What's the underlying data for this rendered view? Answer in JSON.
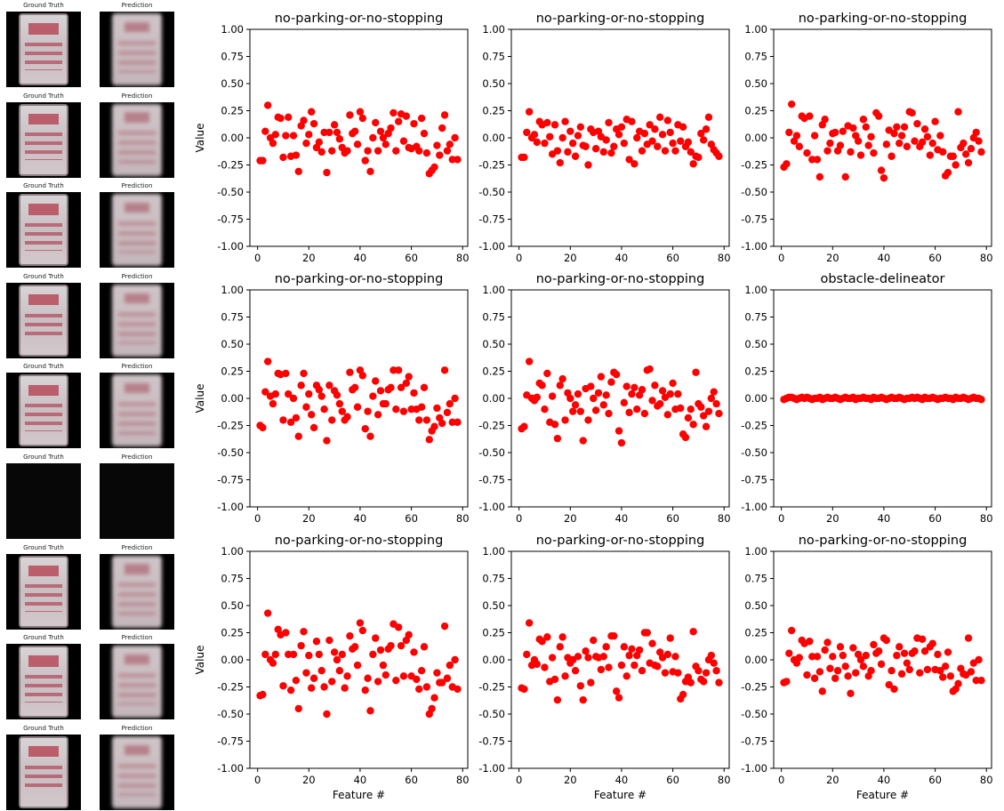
{
  "image_panel": {
    "gt_label": "Ground Truth",
    "pred_label": "Prediction",
    "rows": 9,
    "dark_rows": [
      5
    ]
  },
  "chart_data": [
    {
      "type": "scatter",
      "title": "no-parking-or-no-stopping",
      "xlabel": "",
      "ylabel": "Value",
      "ylim": [
        -1,
        1
      ],
      "xlim": [
        -3,
        82
      ],
      "xticks": [
        0,
        20,
        40,
        60,
        80
      ],
      "yticks": [
        -1,
        -0.75,
        -0.5,
        -0.25,
        0,
        0.25,
        0.5,
        0.75,
        1
      ],
      "color": "#ff0000",
      "values": [
        -0.21,
        -0.21,
        0.06,
        0.3,
        0.0,
        -0.05,
        0.03,
        0.19,
        0.18,
        -0.18,
        0.02,
        0.19,
        -0.17,
        0.02,
        -0.16,
        -0.31,
        0.11,
        0.16,
        -0.05,
        0.03,
        0.24,
        0.13,
        -0.09,
        -0.04,
        -0.13,
        0.05,
        -0.32,
        0.05,
        -0.12,
        0.12,
        0.05,
        -0.01,
        -0.09,
        -0.14,
        -0.12,
        0.21,
        0.04,
        0.06,
        -0.06,
        0.24,
        0.18,
        -0.21,
        -0.12,
        -0.31,
        0.0,
        0.14,
        -0.12,
        0.06,
        0.0,
        -0.06,
        0.04,
        0.09,
        0.23,
        -0.12,
        0.15,
        0.22,
        -0.03,
        0.2,
        -0.09,
        -0.1,
        0.13,
        -0.08,
        -0.12,
        0.18,
        0.04,
        -0.14,
        -0.33,
        -0.3,
        -0.27,
        -0.07,
        -0.16,
        0.09,
        0.21,
        -0.12,
        -0.06,
        -0.2,
        0.0,
        -0.2
      ]
    },
    {
      "type": "scatter",
      "title": "no-parking-or-no-stopping",
      "xlabel": "",
      "ylabel": "",
      "ylim": [
        -1,
        1
      ],
      "xlim": [
        -3,
        82
      ],
      "xticks": [
        0,
        20,
        40,
        60,
        80
      ],
      "yticks": [
        -1,
        -0.75,
        -0.5,
        -0.25,
        0,
        0.25,
        0.5,
        0.75,
        1
      ],
      "color": "#ff0000",
      "values": [
        -0.18,
        -0.18,
        0.05,
        0.24,
        0.0,
        0.03,
        -0.04,
        0.15,
        0.12,
        -0.05,
        0.14,
        0.01,
        -0.15,
        0.12,
        -0.12,
        -0.23,
        0.0,
        0.15,
        -0.13,
        0.06,
        -0.05,
        -0.17,
        0.02,
        0.1,
        -0.07,
        -0.08,
        -0.25,
        0.08,
        0.05,
        -0.1,
        0.06,
        0.01,
        -0.13,
        -0.02,
        0.14,
        -0.14,
        -0.08,
        0.08,
        0.03,
        0.1,
        -0.05,
        0.17,
        -0.2,
        0.15,
        -0.24,
        0.0,
        0.06,
        -0.12,
        0.04,
        -0.06,
        0.12,
        -0.03,
        0.08,
        -0.08,
        0.19,
        0.03,
        -0.12,
        0.16,
        0.05,
        -0.05,
        -0.12,
        0.12,
        -0.03,
        0.1,
        -0.08,
        -0.04,
        -0.13,
        -0.24,
        -0.17,
        -0.18,
        0.04,
        -0.02,
        0.08,
        0.19,
        -0.06,
        -0.11,
        -0.14,
        -0.17
      ]
    },
    {
      "type": "scatter",
      "title": "no-parking-or-no-stopping",
      "xlabel": "",
      "ylabel": "",
      "ylim": [
        -1,
        1
      ],
      "xlim": [
        -3,
        82
      ],
      "xticks": [
        0,
        20,
        40,
        60,
        80
      ],
      "yticks": [
        -1,
        -0.75,
        -0.5,
        -0.25,
        0,
        0.25,
        0.5,
        0.75,
        1
      ],
      "color": "#ff0000",
      "values": [
        -0.27,
        -0.24,
        0.05,
        0.31,
        -0.03,
        0.02,
        -0.08,
        0.2,
        0.18,
        -0.14,
        0.2,
        -0.2,
        0.02,
        -0.2,
        -0.36,
        0.12,
        0.17,
        -0.12,
        -0.05,
        0.04,
        0.05,
        -0.12,
        -0.07,
        0.06,
        -0.36,
        0.11,
        -0.13,
        0.09,
        0.02,
        -0.03,
        -0.16,
        0.17,
        0.1,
        -0.07,
        0.01,
        -0.14,
        0.23,
        0.2,
        -0.3,
        -0.37,
        -0.06,
        0.07,
        -0.17,
        0.04,
        0.1,
        -0.05,
        0.02,
        0.1,
        -0.08,
        0.24,
        0.23,
        -0.03,
        0.13,
        -0.08,
        -0.04,
        0.08,
        0.01,
        -0.16,
        -0.05,
        0.15,
        -0.11,
        0.02,
        -0.13,
        -0.35,
        -0.32,
        -0.17,
        -0.17,
        -0.25,
        0.24,
        -0.09,
        -0.05,
        -0.15,
        -0.23,
        -0.1,
        0.0,
        0.05,
        -0.03,
        -0.13
      ]
    },
    {
      "type": "scatter",
      "title": "no-parking-or-no-stopping",
      "xlabel": "",
      "ylabel": "Value",
      "ylim": [
        -1,
        1
      ],
      "xlim": [
        -3,
        82
      ],
      "xticks": [
        0,
        20,
        40,
        60,
        80
      ],
      "yticks": [
        -1,
        -0.75,
        -0.5,
        -0.25,
        0,
        0.25,
        0.5,
        0.75,
        1
      ],
      "color": "#ff0000",
      "values": [
        -0.25,
        -0.27,
        0.06,
        0.34,
        0.02,
        -0.05,
        0.04,
        0.23,
        0.22,
        -0.2,
        0.23,
        0.04,
        -0.22,
        0.0,
        -0.18,
        -0.35,
        0.12,
        0.23,
        -0.08,
        0.04,
        -0.15,
        -0.27,
        0.12,
        0.08,
        0.02,
        -0.1,
        -0.39,
        0.12,
        -0.2,
        0.07,
        0.03,
        -0.05,
        -0.12,
        -0.2,
        -0.17,
        0.24,
        0.08,
        0.1,
        -0.08,
        0.26,
        0.21,
        -0.28,
        -0.12,
        -0.35,
        0.02,
        0.16,
        -0.15,
        0.07,
        -0.05,
        -0.05,
        0.08,
        0.1,
        0.26,
        -0.1,
        0.26,
        0.1,
        -0.12,
        0.14,
        0.2,
        -0.1,
        0.05,
        -0.1,
        -0.2,
        -0.08,
        0.1,
        -0.2,
        -0.38,
        -0.3,
        -0.26,
        -0.09,
        -0.18,
        -0.23,
        0.26,
        -0.13,
        -0.05,
        -0.22,
        0.0,
        -0.22
      ]
    },
    {
      "type": "scatter",
      "title": "no-parking-or-no-stopping",
      "xlabel": "",
      "ylabel": "",
      "ylim": [
        -1,
        1
      ],
      "xlim": [
        -3,
        82
      ],
      "xticks": [
        0,
        20,
        40,
        60,
        80
      ],
      "yticks": [
        -1,
        -0.75,
        -0.5,
        -0.25,
        0,
        0.25,
        0.5,
        0.75,
        1
      ],
      "color": "#ff0000",
      "values": [
        -0.28,
        -0.26,
        0.03,
        0.34,
        0.0,
        -0.02,
        0.01,
        0.14,
        0.12,
        -0.1,
        0.23,
        -0.22,
        0.02,
        -0.24,
        -0.37,
        0.12,
        0.18,
        -0.2,
        0.05,
        0.0,
        -0.12,
        -0.06,
        0.04,
        -0.12,
        -0.39,
        0.09,
        -0.2,
        0.11,
        0.0,
        -0.11,
        0.05,
        0.2,
        -0.06,
        0.03,
        -0.14,
        0.15,
        0.24,
        0.22,
        -0.3,
        -0.41,
        -0.04,
        0.11,
        -0.13,
        0.04,
        0.1,
        -0.1,
        0.03,
        0.08,
        -0.14,
        0.26,
        0.27,
        -0.02,
        0.12,
        -0.07,
        -0.05,
        0.07,
        0.01,
        -0.15,
        0.04,
        0.14,
        -0.1,
        0.04,
        -0.09,
        -0.33,
        -0.36,
        -0.18,
        -0.1,
        -0.24,
        0.24,
        -0.05,
        -0.08,
        -0.16,
        -0.26,
        -0.12,
        0.0,
        0.06,
        -0.05,
        -0.14
      ]
    },
    {
      "type": "scatter",
      "title": "obstacle-delineator",
      "xlabel": "",
      "ylabel": "",
      "ylim": [
        -1,
        1
      ],
      "xlim": [
        -3,
        82
      ],
      "xticks": [
        0,
        20,
        40,
        60,
        80
      ],
      "yticks": [
        -1,
        -0.75,
        -0.5,
        -0.25,
        0,
        0.25,
        0.5,
        0.75,
        1
      ],
      "color": "#ff0000",
      "values": [
        -0.01,
        0.0,
        0.01,
        0.01,
        0.0,
        -0.01,
        0.0,
        0.01,
        0.0,
        0.01,
        0.0,
        -0.01,
        0.0,
        0.0,
        0.01,
        -0.01,
        0.0,
        0.01,
        0.0,
        0.0,
        0.01,
        0.0,
        -0.01,
        0.0,
        0.01,
        0.0,
        0.0,
        0.01,
        -0.01,
        0.0,
        0.0,
        0.01,
        0.0,
        0.0,
        -0.01,
        0.01,
        0.0,
        0.0,
        0.01,
        0.0,
        -0.01,
        0.0,
        0.01,
        0.0,
        0.0,
        0.01,
        0.0,
        -0.01,
        0.0,
        0.0,
        0.01,
        0.0,
        0.01,
        0.0,
        -0.01,
        0.01,
        0.0,
        0.0,
        0.01,
        0.0,
        -0.01,
        0.0,
        0.0,
        0.01,
        0.0,
        0.0,
        -0.01,
        0.01,
        0.0,
        0.0,
        0.01,
        0.0,
        -0.01,
        0.0,
        0.01,
        0.0,
        0.0,
        -0.01
      ]
    },
    {
      "type": "scatter",
      "title": "no-parking-or-no-stopping",
      "xlabel": "Feature #",
      "ylabel": "Value",
      "ylim": [
        -1,
        1
      ],
      "xlim": [
        -3,
        82
      ],
      "xticks": [
        0,
        20,
        40,
        60,
        80
      ],
      "yticks": [
        -1,
        -0.75,
        -0.5,
        -0.25,
        0,
        0.25,
        0.5,
        0.75,
        1
      ],
      "color": "#ff0000",
      "values": [
        -0.33,
        -0.32,
        0.05,
        0.43,
        0.0,
        -0.03,
        0.05,
        0.28,
        0.23,
        -0.24,
        0.25,
        0.05,
        -0.28,
        0.05,
        -0.19,
        -0.45,
        0.13,
        0.26,
        -0.12,
        0.04,
        -0.26,
        -0.17,
        0.17,
        0.05,
        -0.1,
        -0.25,
        -0.5,
        0.18,
        -0.2,
        0.07,
        0.0,
        -0.1,
        0.05,
        -0.26,
        -0.15,
        0.22,
        0.1,
        0.12,
        -0.05,
        0.34,
        0.27,
        -0.28,
        -0.17,
        -0.47,
        0.05,
        0.2,
        -0.2,
        0.09,
        -0.05,
        -0.14,
        0.1,
        0.13,
        0.33,
        -0.19,
        0.3,
        0.13,
        -0.15,
        0.18,
        0.23,
        -0.15,
        0.07,
        -0.18,
        -0.27,
        -0.1,
        0.12,
        -0.25,
        -0.5,
        -0.45,
        -0.35,
        -0.12,
        -0.21,
        -0.21,
        0.31,
        -0.17,
        -0.05,
        -0.25,
        0.0,
        -0.27
      ]
    },
    {
      "type": "scatter",
      "title": "no-parking-or-no-stopping",
      "xlabel": "Feature #",
      "ylabel": "",
      "ylim": [
        -1,
        1
      ],
      "xlim": [
        -3,
        82
      ],
      "xticks": [
        0,
        20,
        40,
        60,
        80
      ],
      "yticks": [
        -1,
        -0.75,
        -0.5,
        -0.25,
        0,
        0.25,
        0.5,
        0.75,
        1
      ],
      "color": "#ff0000",
      "values": [
        -0.26,
        -0.27,
        0.05,
        0.34,
        -0.05,
        0.0,
        -0.04,
        0.19,
        0.17,
        -0.07,
        0.21,
        -0.2,
        0.02,
        -0.18,
        -0.37,
        0.12,
        0.21,
        -0.15,
        0.02,
        -0.03,
        0.0,
        -0.1,
        0.03,
        -0.24,
        -0.37,
        0.08,
        0.02,
        -0.21,
        0.18,
        0.03,
        0.02,
        -0.09,
        0.03,
        0.12,
        -0.07,
        0.22,
        0.22,
        -0.29,
        -0.35,
        -0.05,
        0.12,
        -0.15,
        0.04,
        0.1,
        -0.05,
        0.04,
        0.09,
        -0.1,
        0.25,
        0.25,
        -0.03,
        0.15,
        -0.05,
        -0.06,
        0.07,
        0.02,
        -0.12,
        0.05,
        0.2,
        -0.11,
        0.03,
        -0.12,
        -0.36,
        -0.32,
        -0.2,
        -0.16,
        -0.21,
        0.26,
        -0.06,
        -0.1,
        -0.18,
        -0.2,
        -0.12,
        0.0,
        0.04,
        -0.03,
        -0.1,
        -0.21
      ]
    },
    {
      "type": "scatter",
      "title": "no-parking-or-no-stopping",
      "xlabel": "Feature #",
      "ylabel": "",
      "ylim": [
        -1,
        1
      ],
      "xlim": [
        -3,
        82
      ],
      "xticks": [
        0,
        20,
        40,
        60,
        80
      ],
      "yticks": [
        -1,
        -0.75,
        -0.5,
        -0.25,
        0,
        0.25,
        0.5,
        0.75,
        1
      ],
      "color": "#ff0000",
      "values": [
        -0.21,
        -0.2,
        0.06,
        0.27,
        0.0,
        -0.03,
        0.02,
        0.18,
        0.15,
        -0.14,
        0.17,
        0.03,
        -0.17,
        0.03,
        -0.11,
        -0.29,
        0.09,
        0.16,
        -0.08,
        0.03,
        -0.17,
        -0.1,
        0.12,
        0.04,
        -0.06,
        -0.15,
        -0.31,
        0.11,
        -0.12,
        0.05,
        0.0,
        -0.06,
        0.04,
        -0.15,
        -0.1,
        0.14,
        0.06,
        0.08,
        -0.04,
        0.2,
        0.18,
        -0.23,
        -0.1,
        -0.27,
        0.04,
        0.12,
        -0.13,
        0.06,
        -0.03,
        -0.09,
        0.06,
        0.08,
        0.2,
        -0.12,
        0.19,
        0.08,
        -0.09,
        0.12,
        0.15,
        -0.09,
        0.05,
        -0.1,
        -0.16,
        -0.06,
        0.07,
        -0.15,
        -0.29,
        -0.27,
        -0.22,
        -0.08,
        -0.13,
        -0.14,
        0.2,
        -0.11,
        -0.03,
        -0.19,
        0.0,
        -0.19
      ]
    }
  ]
}
